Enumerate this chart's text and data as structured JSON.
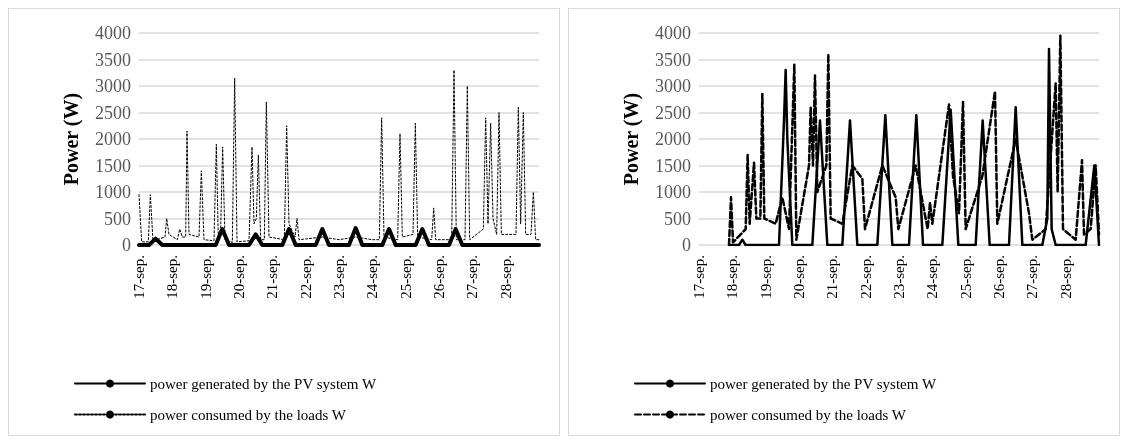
{
  "chart_data": [
    {
      "type": "line",
      "ylabel": "Power (W)",
      "xlim": [
        "--09-17",
        "--09-29"
      ],
      "xticks": [
        {
          "value": "--09-17",
          "label": "17-sep."
        },
        {
          "value": "--09-18",
          "label": "18-sep."
        },
        {
          "value": "--09-19",
          "label": "19-sep."
        },
        {
          "value": "--09-20",
          "label": "20-sep."
        },
        {
          "value": "--09-21",
          "label": "21-sep."
        },
        {
          "value": "--09-22",
          "label": "22-sep."
        },
        {
          "value": "--09-23",
          "label": "23-sep."
        },
        {
          "value": "--09-24",
          "label": "24-sep."
        },
        {
          "value": "--09-25",
          "label": "25-sep."
        },
        {
          "value": "--09-26",
          "label": "26-sep."
        },
        {
          "value": "--09-27",
          "label": "27-sep."
        },
        {
          "value": "--09-28",
          "label": "28-sep."
        }
      ],
      "ylim": [
        0,
        4000
      ],
      "yticks": [
        0,
        500,
        1000,
        1500,
        2000,
        2500,
        3000,
        3500,
        4000
      ],
      "grid": "y",
      "legend": "bottom",
      "marker": "none",
      "series": [
        {
          "name": "power generated by the PV system W",
          "color": "#000000",
          "line_style": "solid",
          "x": [
            "--09-17T00:00",
            "--09-17T07:12",
            "--09-17T12:00",
            "--09-17T16:48",
            "--09-19T07:12",
            "--09-19T12:00",
            "--09-19T16:48",
            "--09-20T07:12",
            "--09-20T12:00",
            "--09-20T16:48",
            "--09-21T07:12",
            "--09-21T12:00",
            "--09-21T16:48",
            "--09-22T07:12",
            "--09-22T12:00",
            "--09-22T16:48",
            "--09-23T07:12",
            "--09-23T12:00",
            "--09-23T16:48",
            "--09-24T07:12",
            "--09-24T12:00",
            "--09-24T16:48",
            "--09-25T07:12",
            "--09-25T12:00",
            "--09-25T16:48",
            "--09-26T07:12",
            "--09-26T12:00",
            "--09-26T16:48",
            "--09-29T00:00"
          ],
          "values": [
            0,
            0,
            120,
            0,
            0,
            300,
            0,
            0,
            200,
            0,
            0,
            300,
            0,
            0,
            300,
            0,
            0,
            320,
            0,
            0,
            300,
            0,
            0,
            300,
            0,
            0,
            300,
            0,
            0
          ]
        },
        {
          "name": "power consumed by the loads W",
          "color": "#000000",
          "line_style": "dotted",
          "x": [
            "--09-17T00:00",
            "--09-17T01:55",
            "--09-17T06:43",
            "--09-17T08:10",
            "--09-17T10:05",
            "--09-17T18:43",
            "--09-17T19:55",
            "--09-17T21:36",
            "--09-18T03:36",
            "--09-18T05:17",
            "--09-18T07:12",
            "--09-18T09:36",
            "--09-18T10:34",
            "--09-18T12:00",
            "--09-18T19:12",
            "--09-18T20:53",
            "--09-18T22:48",
            "--09-19T06:00",
            "--09-19T07:41",
            "--09-19T09:07",
            "--09-19T10:48",
            "--09-19T12:14",
            "--09-19T13:55",
            "--09-19T19:12",
            "--09-19T20:53",
            "--09-19T22:34",
            "--09-20T07:12",
            "--09-20T09:22",
            "--09-20T10:48",
            "--09-20T12:29",
            "--09-20T13:55",
            "--09-20T15:36",
            "--09-20T18:14",
            "--09-20T19:41",
            "--09-20T21:36",
            "--09-21T08:38",
            "--09-21T10:19",
            "--09-21T12:00",
            "--09-21T16:19",
            "--09-21T17:46",
            "--09-21T19:12",
            "--09-22T12:00",
            "--09-23T00:00",
            "--09-23T12:00",
            "--09-24T00:00",
            "--09-24T05:02",
            "--09-24T06:43",
            "--09-24T08:24",
            "--09-24T18:14",
            "--09-24T19:55",
            "--09-24T21:36",
            "--09-25T05:17",
            "--09-25T06:58",
            "--09-25T08:38",
            "--09-25T18:43",
            "--09-25T20:10",
            "--09-25T21:36",
            "--09-26T09:07",
            "--09-26T10:48",
            "--09-26T12:29",
            "--09-26T18:43",
            "--09-26T20:24",
            "--09-26T22:05",
            "--09-27T07:55",
            "--09-27T09:36",
            "--09-27T11:17",
            "--09-27T13:12",
            "--09-27T14:53",
            "--09-27T17:31",
            "--09-27T19:12",
            "--09-27T20:53",
            "--09-28T07:26",
            "--09-28T09:07",
            "--09-28T10:48",
            "--09-28T12:43",
            "--09-28T14:24",
            "--09-28T18:14",
            "--09-28T19:55",
            "--09-28T21:36",
            "--09-29T00:00"
          ],
          "values": [
            950,
            60,
            60,
            950,
            80,
            150,
            500,
            200,
            100,
            300,
            150,
            150,
            2150,
            200,
            150,
            1400,
            100,
            80,
            1900,
            100,
            300,
            1850,
            100,
            50,
            3150,
            60,
            80,
            1850,
            400,
            500,
            1700,
            100,
            100,
            2700,
            150,
            100,
            2250,
            400,
            150,
            500,
            100,
            150,
            100,
            150,
            100,
            100,
            2400,
            150,
            100,
            2100,
            150,
            200,
            2300,
            150,
            100,
            700,
            100,
            100,
            3300,
            100,
            100,
            3000,
            100,
            300,
            2400,
            400,
            2300,
            500,
            200,
            2500,
            200,
            200,
            2600,
            400,
            2500,
            200,
            200,
            1000,
            100,
            100
          ]
        }
      ]
    },
    {
      "type": "line",
      "ylabel": "Power (W)",
      "xlim": [
        "--09-17",
        "--09-29"
      ],
      "xticks": [
        {
          "value": "--09-17",
          "label": "17-sep."
        },
        {
          "value": "--09-18",
          "label": "18-sep."
        },
        {
          "value": "--09-19",
          "label": "19-sep."
        },
        {
          "value": "--09-20",
          "label": "20-sep."
        },
        {
          "value": "--09-21",
          "label": "21-sep."
        },
        {
          "value": "--09-22",
          "label": "22-sep."
        },
        {
          "value": "--09-23",
          "label": "23-sep."
        },
        {
          "value": "--09-24",
          "label": "24-sep."
        },
        {
          "value": "--09-25",
          "label": "25-sep."
        },
        {
          "value": "--09-26",
          "label": "26-sep."
        },
        {
          "value": "--09-27",
          "label": "27-sep."
        },
        {
          "value": "--09-28",
          "label": "28-sep."
        }
      ],
      "ylim": [
        0,
        4000
      ],
      "yticks": [
        0,
        500,
        1000,
        1500,
        2000,
        2500,
        3000,
        3500,
        4000
      ],
      "grid": "y",
      "legend": "bottom",
      "marker": "none",
      "series": [
        {
          "name": "power generated by the PV system W",
          "color": "#000000",
          "line_style": "solid",
          "x": [
            "--09-17T22:48",
            "--09-18T04:48",
            "--09-18T07:12",
            "--09-18T09:36",
            "--09-19T09:36",
            "--09-19T13:12",
            "--09-19T14:24",
            "--09-19T15:36",
            "--09-19T19:12",
            "--09-20T09:36",
            "--09-20T15:07",
            "--09-20T20:24",
            "--09-21T07:12",
            "--09-21T12:43",
            "--09-21T18:00",
            "--09-22T08:24",
            "--09-22T14:10",
            "--09-22T19:12",
            "--09-23T07:12",
            "--09-23T12:29",
            "--09-23T17:17",
            "--09-24T07:12",
            "--09-24T13:12",
            "--09-24T18:43",
            "--09-25T07:12",
            "--09-25T12:14",
            "--09-25T17:17",
            "--09-26T07:12",
            "--09-26T12:00",
            "--09-26T16:48",
            "--09-27T07:12",
            "--09-27T10:48",
            "--09-27T12:00",
            "--09-27T13:55",
            "--09-27T16:48",
            "--09-28T14:24",
            "--09-28T20:38",
            "--09-29T00:00"
          ],
          "values": [
            0,
            0,
            100,
            0,
            0,
            2350,
            3300,
            2000,
            0,
            0,
            2350,
            0,
            0,
            2350,
            0,
            0,
            2450,
            0,
            0,
            2450,
            0,
            0,
            2550,
            0,
            0,
            2350,
            0,
            0,
            2600,
            0,
            0,
            500,
            3700,
            300,
            0,
            0,
            1500,
            0
          ]
        },
        {
          "name": "power consumed by the loads W",
          "color": "#000000",
          "line_style": "dashed",
          "x": [
            "--09-17T21:36",
            "--09-17T23:02",
            "--09-18T00:29",
            "--09-18T09:36",
            "--09-18T11:02",
            "--09-18T12:29",
            "--09-18T15:36",
            "--09-18T17:17",
            "--09-18T20:10",
            "--09-18T21:36",
            "--09-18T23:02",
            "--09-19T07:12",
            "--09-19T12:00",
            "--09-19T16:48",
            "--09-19T20:38",
            "--09-19T22:05",
            "--09-20T07:12",
            "--09-20T08:24",
            "--09-20T10:05",
            "--09-20T11:31",
            "--09-20T13:12",
            "--09-20T19:41",
            "--09-20T21:07",
            "--09-20T22:48",
            "--09-21T07:12",
            "--09-21T14:24",
            "--09-21T21:36",
            "--09-21T23:31",
            "--09-22T12:00",
            "--09-22T21:36",
            "--09-22T23:31",
            "--09-23T12:00",
            "--09-23T20:38",
            "--09-23T22:19",
            "--09-24T00:00",
            "--09-24T12:00",
            "--09-24T14:53",
            "--09-24T19:12",
            "--09-24T22:05",
            "--09-25T00:00",
            "--09-25T12:00",
            "--09-25T21:07",
            "--09-25T22:48",
            "--09-26T12:00",
            "--09-26T21:36",
            "--09-27T00:00",
            "--09-27T09:36",
            "--09-27T16:48",
            "--09-27T18:14",
            "--09-27T20:10",
            "--09-27T22:05",
            "--09-28T07:12",
            "--09-28T11:46",
            "--09-28T13:12",
            "--09-28T18:00",
            "--09-28T21:36",
            "--09-29T00:00"
          ],
          "values": [
            0,
            900,
            50,
            300,
            1700,
            400,
            1550,
            500,
            500,
            2850,
            500,
            400,
            900,
            300,
            3400,
            100,
            1500,
            2600,
            1500,
            3200,
            1000,
            1500,
            3600,
            500,
            400,
            1500,
            1250,
            300,
            1500,
            900,
            300,
            1500,
            300,
            800,
            400,
            2650,
            1300,
            600,
            2700,
            300,
            1300,
            2900,
            400,
            2000,
            600,
            100,
            300,
            3050,
            1000,
            3950,
            300,
            100,
            1600,
            200,
            300,
            1500,
            200
          ]
        }
      ]
    }
  ]
}
